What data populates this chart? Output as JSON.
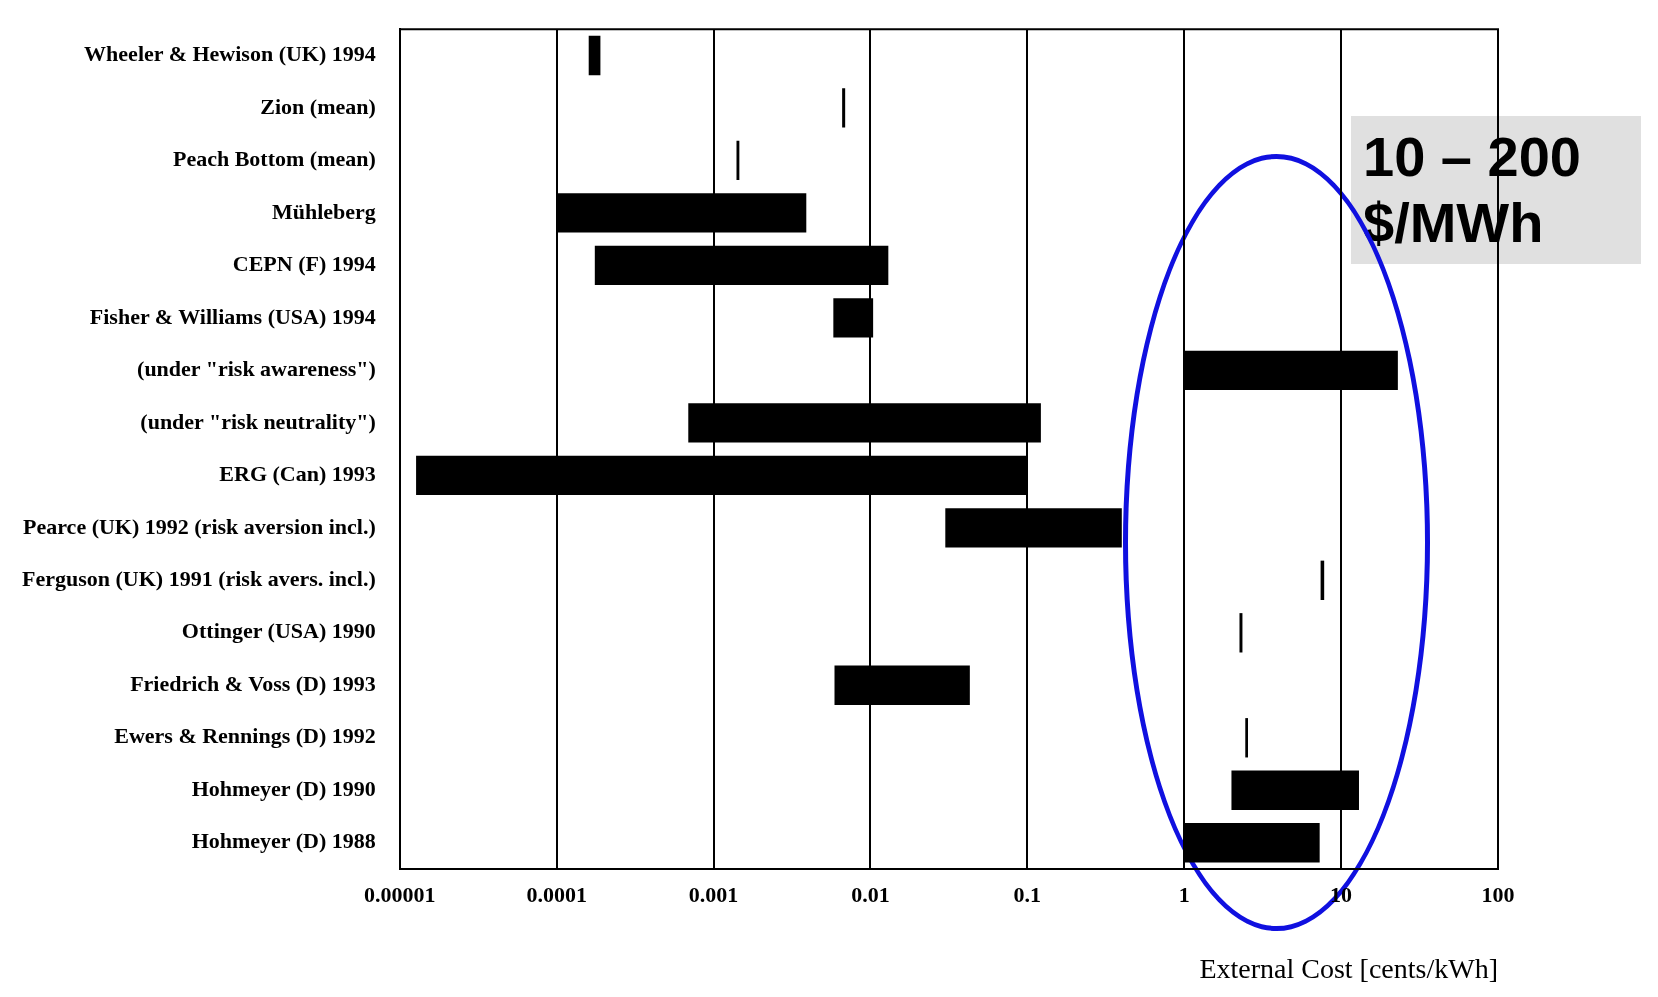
{
  "chart_data": {
    "type": "bar",
    "orientation": "horizontal",
    "log": "x",
    "xlabel": "External Cost [cents/kWh]",
    "categories": [
      "Wheeler & Hewison (UK) 1994",
      "Zion (mean)",
      "Peach Bottom (mean)",
      "Mühleberg",
      "CEPN (F) 1994",
      "Fisher & Williams (USA) 1994",
      "(under \"risk awareness\")",
      "(under \"risk neutrality\")",
      "ERG (Can) 1993",
      "Pearce (UK) 1992 (risk aversion incl.)",
      "Ferguson (UK) 1991 (risk avers. incl.)",
      "Ottinger (USA) 1990",
      "Friedrich & Voss (D) 1993",
      "Ewers & Rennings (D) 1992",
      "Hohmeyer (D) 1990",
      "Hohmeyer (D) 1988"
    ],
    "base": [
      0.00016,
      0.0066,
      0.0014,
      0.0001,
      0.000175,
      0.0058,
      1,
      0.00069,
      1.27e-05,
      0.03,
      7.4,
      2.25,
      0.0059,
      2.45,
      2,
      1
    ],
    "values": [
      3e-05,
      0.0003,
      6e-05,
      0.0038,
      0.012825,
      0.0046,
      22,
      0.12131,
      0.0999873,
      0.37,
      0.4,
      0.1,
      0.0371,
      0.1,
      11,
      6.3
    ],
    "color": "#000000",
    "xlim": [
      1e-05,
      100
    ],
    "xticks": [
      {
        "value": 1e-05,
        "label": "0.00001"
      },
      0.0001,
      0.001,
      0.01,
      0.1,
      1,
      10,
      100
    ],
    "grid": "x",
    "legend": false,
    "annotations": [
      "10 – 200 $/MWh"
    ]
  }
}
